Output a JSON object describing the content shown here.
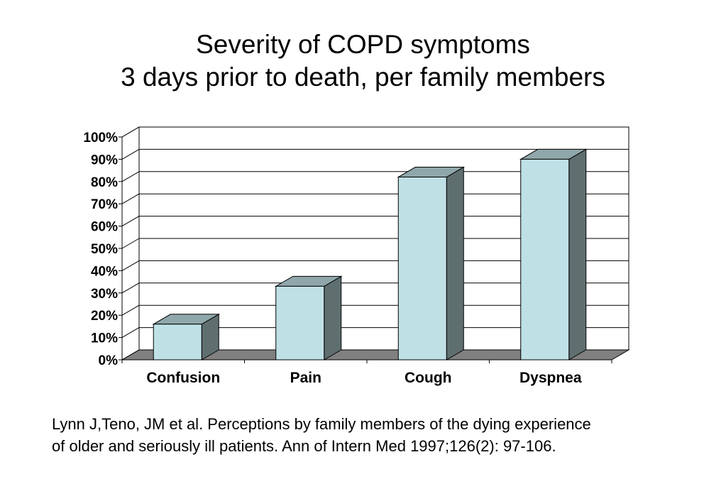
{
  "title": {
    "line1": "Severity of COPD symptoms",
    "line2": "3 days prior to death, per family members"
  },
  "citation": {
    "line1": "Lynn J,Teno, JM et al. Perceptions by family members of the dying experience",
    "line2": "of older and seriously ill patients. Ann of Intern Med 1997;126(2): 97-106."
  },
  "chart_data": {
    "type": "bar",
    "style": "3d-column",
    "categories": [
      "Confusion",
      "Pain",
      "Cough",
      "Dyspnea"
    ],
    "values": [
      16,
      33,
      82,
      90
    ],
    "ylim": [
      0,
      100
    ],
    "yticks": [
      "0%",
      "10%",
      "20%",
      "30%",
      "40%",
      "50%",
      "60%",
      "70%",
      "80%",
      "90%",
      "100%"
    ],
    "grid": true,
    "legend": "none",
    "colors": {
      "bar_front": "#bfe1e6",
      "bar_top": "#8fa7aa",
      "bar_side": "#5f6f70",
      "floor": "#808080"
    }
  }
}
